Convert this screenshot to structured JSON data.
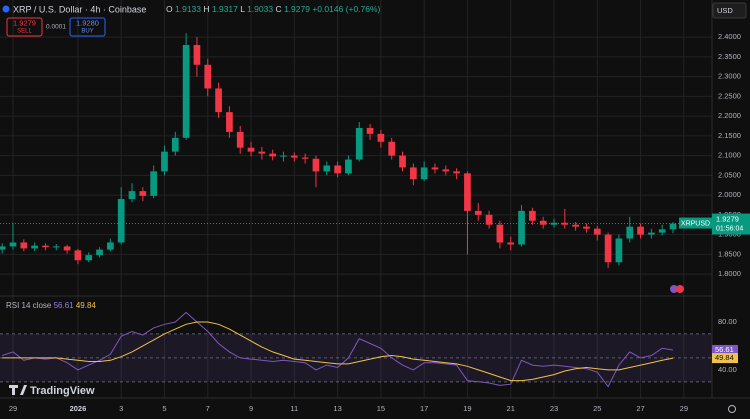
{
  "chart_data": [
    {
      "type": "candlestick",
      "title": "XRP / U.S. Dollar · 4h · Coinbase",
      "symbol": "XRPUSD",
      "ohlc_labels": [
        "O",
        "H",
        "L",
        "C"
      ],
      "change": "+0.0146 (+0.76%)",
      "countdown": "01:56:04",
      "categories": [
        null,
        "29",
        null,
        null,
        null,
        null,
        null,
        "2026",
        null,
        null,
        null,
        "3",
        null,
        null,
        null,
        "5",
        null,
        null,
        null,
        "7",
        null,
        null,
        null,
        "9",
        null,
        null,
        null,
        "11",
        null,
        null,
        null,
        "13",
        null,
        null,
        null,
        "15",
        null,
        null,
        null,
        "17",
        null,
        null,
        null,
        "19",
        null,
        null,
        null,
        "21",
        null,
        null,
        null,
        "23",
        null,
        null,
        null,
        "25",
        null,
        null,
        null,
        "27",
        null,
        null,
        null,
        "29"
      ],
      "open": [
        1.862,
        1.87,
        1.88,
        1.865,
        1.872,
        1.868,
        1.87,
        1.86,
        1.835,
        1.848,
        1.862,
        1.88,
        1.99,
        2.01,
        1.998,
        2.06,
        2.11,
        2.145,
        2.38,
        2.33,
        2.27,
        2.21,
        2.16,
        2.12,
        2.11,
        2.105,
        2.098,
        2.1,
        2.095,
        2.092,
        2.06,
        2.075,
        2.055,
        2.09,
        2.17,
        2.155,
        2.135,
        2.1,
        2.07,
        2.04,
        2.07,
        2.065,
        2.06,
        2.055,
        1.96,
        1.95,
        1.925,
        1.88,
        1.875,
        1.96,
        1.935,
        1.925,
        1.93,
        1.925,
        1.92,
        1.915,
        1.9,
        1.83,
        1.89,
        1.92,
        1.9,
        1.905,
        1.9133,
        null
      ],
      "high": [
        1.878,
        1.93,
        1.888,
        1.88,
        1.878,
        1.876,
        1.874,
        1.864,
        1.855,
        1.868,
        1.89,
        2.02,
        2.03,
        2.02,
        2.075,
        2.125,
        2.16,
        2.41,
        2.4,
        2.345,
        2.285,
        2.225,
        2.175,
        2.135,
        2.122,
        2.115,
        2.11,
        2.108,
        2.105,
        2.1,
        2.085,
        2.085,
        2.1,
        2.185,
        2.18,
        2.165,
        2.145,
        2.11,
        2.08,
        2.085,
        2.08,
        2.075,
        2.068,
        2.06,
        1.98,
        1.96,
        1.935,
        1.895,
        1.975,
        1.968,
        1.945,
        1.94,
        1.965,
        1.932,
        1.928,
        1.922,
        1.905,
        1.9,
        1.945,
        1.928,
        1.915,
        1.925,
        1.9317,
        null
      ],
      "low": [
        1.852,
        1.862,
        1.858,
        1.858,
        1.86,
        1.86,
        1.852,
        1.825,
        1.83,
        1.842,
        1.858,
        1.875,
        1.982,
        1.985,
        1.992,
        2.05,
        2.1,
        2.14,
        2.3,
        2.25,
        2.195,
        2.145,
        2.105,
        2.098,
        2.09,
        2.088,
        2.085,
        2.085,
        2.08,
        2.02,
        2.05,
        2.045,
        2.05,
        2.085,
        2.14,
        2.12,
        2.09,
        2.06,
        2.025,
        2.035,
        2.055,
        2.05,
        2.04,
        1.85,
        1.935,
        1.915,
        1.865,
        1.86,
        1.87,
        1.925,
        1.915,
        1.918,
        1.915,
        1.91,
        1.905,
        1.885,
        1.815,
        1.822,
        1.88,
        1.89,
        1.89,
        1.898,
        1.9033,
        null
      ],
      "close": [
        1.87,
        1.88,
        1.865,
        1.872,
        1.868,
        1.87,
        1.86,
        1.835,
        1.848,
        1.862,
        1.88,
        1.99,
        2.01,
        1.998,
        2.06,
        2.11,
        2.145,
        2.38,
        2.33,
        2.27,
        2.21,
        2.16,
        2.12,
        2.11,
        2.105,
        2.098,
        2.1,
        2.095,
        2.092,
        2.06,
        2.075,
        2.055,
        2.09,
        2.17,
        2.155,
        2.135,
        2.1,
        2.07,
        2.04,
        2.07,
        2.065,
        2.06,
        2.055,
        1.96,
        1.95,
        1.925,
        1.88,
        1.875,
        1.96,
        1.935,
        1.925,
        1.93,
        1.925,
        1.92,
        1.915,
        1.9,
        1.83,
        1.89,
        1.92,
        1.9,
        1.905,
        1.9133,
        1.9279,
        null
      ],
      "up_color": "#089981",
      "down_color": "#f23645",
      "ylim": [
        1.747,
        2.494
      ],
      "yticks": [
        {
          "value": 1.8,
          "label": "1.8000"
        },
        {
          "value": 1.85,
          "label": "1.8500"
        },
        {
          "value": 1.9,
          "label": "1.9000"
        },
        {
          "value": 1.95,
          "label": "1.9500"
        },
        {
          "value": 2.0,
          "label": "2.0000"
        },
        {
          "value": 2.05,
          "label": "2.0500"
        },
        {
          "value": 2.1,
          "label": "2.1000"
        },
        {
          "value": 2.15,
          "label": "2.1500"
        },
        {
          "value": 2.2,
          "label": "2.2000"
        },
        {
          "value": 2.25,
          "label": "2.2500"
        },
        {
          "value": 2.3,
          "label": "2.3000"
        },
        {
          "value": 2.35,
          "label": "2.3500"
        },
        {
          "value": 2.4,
          "label": "2.4000"
        }
      ],
      "grid": true
    },
    {
      "type": "line",
      "title": "RSI 14 close",
      "series": [
        {
          "color": "#7e57c2",
          "values": [
            52,
            55,
            48,
            50,
            49,
            50,
            46,
            40,
            44,
            48,
            53,
            68,
            72,
            69,
            75,
            78,
            80,
            88,
            80,
            72,
            62,
            55,
            50,
            49,
            48,
            47,
            48,
            47,
            46,
            40,
            44,
            42,
            50,
            66,
            62,
            58,
            50,
            44,
            40,
            46,
            46,
            45,
            44,
            31,
            30,
            29,
            27,
            28,
            48,
            44,
            43,
            44,
            43,
            42,
            41,
            38,
            26,
            44,
            55,
            50,
            52,
            58,
            56.61,
            null
          ]
        },
        {
          "color": "#f0c24a",
          "values": [
            50,
            50,
            50,
            50,
            50,
            50,
            49,
            48,
            47,
            47,
            48,
            51,
            55,
            60,
            65,
            70,
            74,
            78,
            80,
            80,
            78,
            74,
            69,
            64,
            59,
            55,
            52,
            49,
            48,
            47,
            46,
            45,
            45,
            47,
            49,
            51,
            52,
            51,
            49,
            48,
            47,
            46,
            45,
            43,
            40,
            37,
            34,
            31,
            31,
            32,
            34,
            36,
            39,
            41,
            42,
            41,
            40,
            40,
            42,
            44,
            46,
            48,
            49.84,
            null
          ]
        }
      ],
      "ylim": [
        19,
        100
      ],
      "yticks": [
        {
          "value": 40,
          "label": "40.00"
        },
        {
          "value": 80,
          "label": "80.00"
        }
      ],
      "bands": [
        70,
        50,
        30
      ]
    }
  ],
  "ui": {
    "currency": "USD",
    "sell_price": "1.9279",
    "sell_label": "SELL",
    "spread": "0.0001",
    "buy_price": "1.9280",
    "buy_label": "BUY",
    "brand": "TradingView"
  }
}
